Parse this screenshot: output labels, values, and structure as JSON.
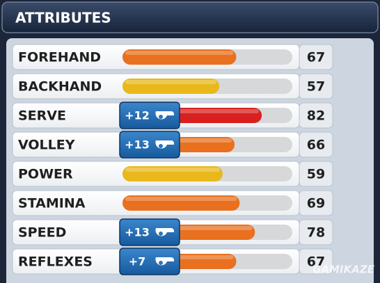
{
  "header": {
    "title": "ATTRIBUTES"
  },
  "bar_range": [
    0,
    100
  ],
  "attributes": [
    {
      "name": "FOREHAND",
      "value": 67,
      "color": "#e8701e"
    },
    {
      "name": "BACKHAND",
      "value": 57,
      "color": "#e8b81c"
    },
    {
      "name": "SERVE",
      "value": 82,
      "color": "#d8201e",
      "bonus": "+12"
    },
    {
      "name": "VOLLEY",
      "value": 66,
      "color": "#e8701e",
      "bonus": "+13"
    },
    {
      "name": "POWER",
      "value": 59,
      "color": "#e8b81c"
    },
    {
      "name": "STAMINA",
      "value": 69,
      "color": "#e8701e"
    },
    {
      "name": "SPEED",
      "value": 78,
      "color": "#e8701e",
      "bonus": "+13"
    },
    {
      "name": "REFLEXES",
      "value": 67,
      "color": "#e8701e",
      "bonus": "+7"
    }
  ],
  "watermark": "GAMIKAZE"
}
